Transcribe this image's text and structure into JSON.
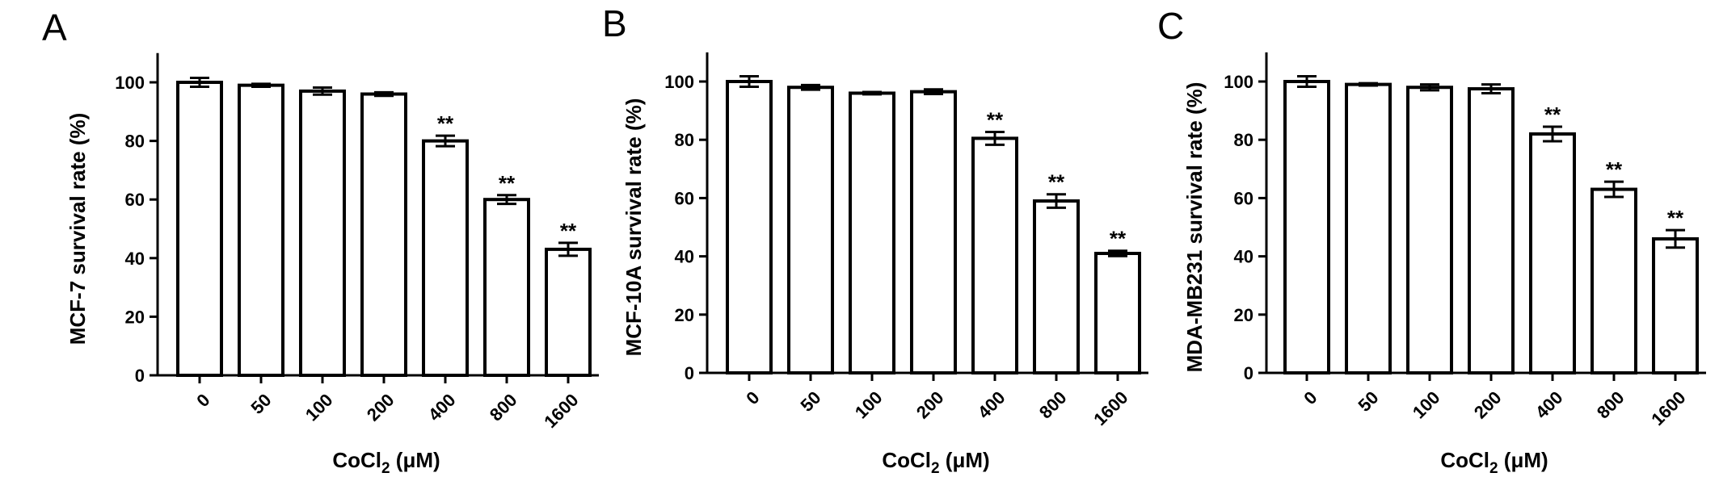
{
  "chart_data": [
    {
      "type": "bar",
      "panel_label": "A",
      "categories": [
        "0",
        "50",
        "100",
        "200",
        "400",
        "800",
        "1600"
      ],
      "values": [
        100,
        99,
        97,
        96,
        80,
        60,
        43
      ],
      "errors": [
        1.5,
        0.5,
        1.2,
        0.6,
        1.8,
        1.5,
        2.2
      ],
      "annotations": [
        "",
        "",
        "",
        "",
        "**",
        "**",
        "**"
      ],
      "ylabel": "MCF-7 survival rate (%)",
      "xlabel_main": "CoCl",
      "xlabel_sub": "2",
      "xlabel_unit": " (μM)",
      "ylim": [
        0,
        110
      ],
      "yticks": [
        0,
        20,
        40,
        60,
        80,
        100
      ],
      "grid": false
    },
    {
      "type": "bar",
      "panel_label": "B",
      "categories": [
        "0",
        "50",
        "100",
        "200",
        "400",
        "800",
        "1600"
      ],
      "values": [
        100,
        98,
        96,
        96.5,
        80.5,
        59,
        41
      ],
      "errors": [
        1.8,
        0.8,
        0.4,
        0.8,
        2.2,
        2.3,
        0.9
      ],
      "annotations": [
        "",
        "",
        "",
        "",
        "**",
        "**",
        "**"
      ],
      "ylabel": "MCF-10A survival rate (%)",
      "xlabel_main": "CoCl",
      "xlabel_sub": "2",
      "xlabel_unit": " (μM)",
      "ylim": [
        0,
        110
      ],
      "yticks": [
        0,
        20,
        40,
        60,
        80,
        100
      ],
      "grid": false
    },
    {
      "type": "bar",
      "panel_label": "C",
      "categories": [
        "0",
        "50",
        "100",
        "200",
        "400",
        "800",
        "1600"
      ],
      "values": [
        100,
        99,
        98,
        97.5,
        82,
        63,
        46
      ],
      "errors": [
        1.8,
        0.4,
        1.0,
        1.5,
        2.5,
        2.6,
        3.0
      ],
      "annotations": [
        "",
        "",
        "",
        "",
        "**",
        "**",
        "**"
      ],
      "ylabel": "MDA-MB231 survival rate (%)",
      "xlabel_main": "CoCl",
      "xlabel_sub": "2",
      "xlabel_unit": " (μM)",
      "ylim": [
        0,
        110
      ],
      "yticks": [
        0,
        20,
        40,
        60,
        80,
        100
      ],
      "grid": false
    }
  ],
  "colors": {
    "bar_fill": "#ffffff",
    "bar_stroke": "#000000",
    "axis": "#000000"
  }
}
